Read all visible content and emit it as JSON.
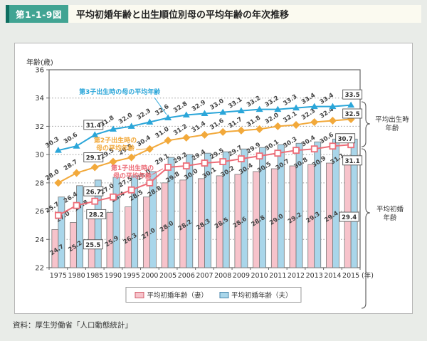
{
  "header": {
    "figure_label": "第1-1-9図",
    "title": "平均初婚年齢と出生順位別母の平均年齢の年次推移"
  },
  "source": "資料：厚生労働省「人口動態統計」",
  "legend": {
    "wife": "平均初婚年齢（妻）",
    "husband": "平均初婚年齢（夫）"
  },
  "axis": {
    "y_label": "年齢(歳)",
    "y_min": 22,
    "y_max": 36,
    "y_tick_step": 2,
    "x_unit_suffix": "(年)"
  },
  "annotations": {
    "line3": "第3子出生時の母の平均年齢",
    "line2": "第2子出生時の\n母の平均年齢",
    "line1": "第1子出生時の\n母の平均年齢",
    "right_top": "平均出生時\n年齢",
    "right_bottom": "平均初婚\n年齢"
  },
  "chart_data": {
    "type": "bar+line",
    "categories": [
      "1975",
      "1980",
      "1985",
      "1990",
      "1995",
      "2000",
      "2005",
      "2006",
      "2007",
      "2008",
      "2009",
      "2010",
      "2011",
      "2012",
      "2013",
      "2014",
      "2015"
    ],
    "ylim": [
      22,
      36
    ],
    "grid": "dotted-horizontal",
    "boxed_category_indices": [
      2,
      16
    ],
    "bar_series": [
      {
        "name": "平均初婚年齢（妻）",
        "color": "#f7c3cb",
        "values": [
          24.7,
          25.2,
          25.5,
          25.9,
          26.3,
          27.0,
          28.0,
          28.2,
          28.3,
          28.5,
          28.6,
          28.8,
          29.0,
          29.2,
          29.3,
          29.4,
          29.4
        ]
      },
      {
        "name": "平均初婚年齢（夫）",
        "color": "#a9d6ea",
        "values": [
          27.0,
          27.8,
          28.2,
          28.4,
          28.5,
          28.8,
          29.8,
          30.0,
          30.1,
          30.2,
          30.4,
          30.5,
          30.7,
          30.8,
          30.9,
          31.1,
          31.1
        ]
      }
    ],
    "line_series": [
      {
        "name": "第1子出生時の母の平均年齢",
        "key": "first-child",
        "color": "#ed6d78",
        "marker": "square-open",
        "values": [
          25.7,
          26.4,
          26.7,
          27.0,
          27.5,
          28.0,
          29.1,
          29.2,
          29.4,
          29.5,
          29.7,
          29.9,
          30.1,
          30.3,
          30.4,
          30.6,
          30.7
        ]
      },
      {
        "name": "第2子出生時の母の平均年齢",
        "key": "second-child",
        "color": "#f2a93b",
        "marker": "diamond",
        "values": [
          28.0,
          28.7,
          29.1,
          29.5,
          29.8,
          30.4,
          31.0,
          31.2,
          31.4,
          31.6,
          31.7,
          31.8,
          32.0,
          32.1,
          32.3,
          32.4,
          32.5
        ]
      },
      {
        "name": "第3子出生時の母の平均年齢",
        "key": "third-child",
        "color": "#2ba6d9",
        "marker": "triangle",
        "values": [
          30.3,
          30.6,
          31.4,
          31.8,
          32.0,
          32.3,
          32.6,
          32.8,
          32.9,
          33.0,
          33.1,
          33.2,
          33.2,
          33.3,
          33.4,
          33.4,
          33.5
        ]
      }
    ]
  }
}
